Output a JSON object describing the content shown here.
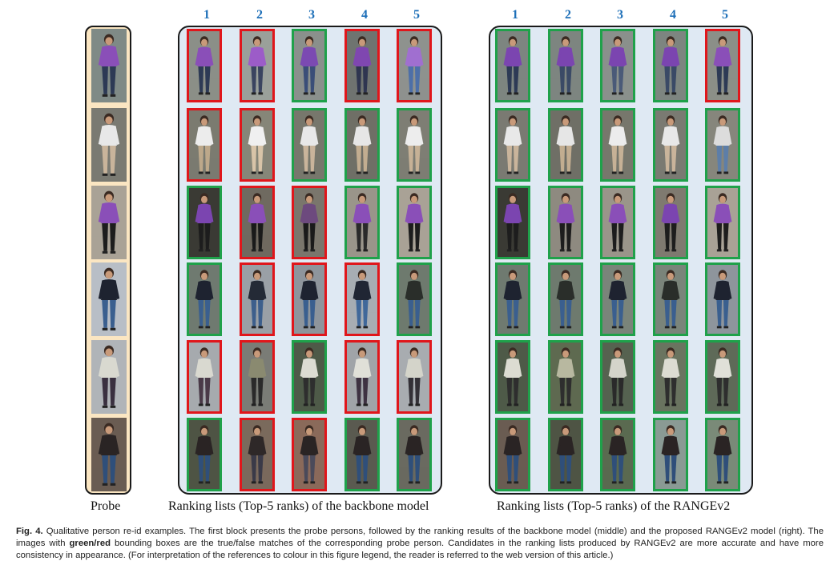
{
  "rank_numbers": [
    "1",
    "2",
    "3",
    "4",
    "5"
  ],
  "captions": {
    "probe": "Probe",
    "backbone": "Ranking lists (Top-5 ranks) of the backbone model",
    "rangev2": "Ranking lists (Top-5 ranks) of the RANGEv2"
  },
  "figure_caption": {
    "label": "Fig. 4.",
    "text_1": " Qualitative person re-id examples. The first block presents the probe persons, followed by the ranking results of the backbone model (middle) and the proposed RANGEv2 model (right). The images with ",
    "emphasis": "green/red",
    "text_2": " bounding boxes are the true/false matches of the corresponding probe person. Candidates in the ranking lists produced by RANGEv2 are more accurate and have more consistency in appearance. (For interpretation of the references to colour in this figure legend, the reader is referred to the web version of this article.)"
  },
  "colors": {
    "true_match": "#1fa14a",
    "false_match": "#e0161b",
    "rank_number": "#1d6fb8",
    "probe_bg": "#fbe6c2",
    "rank_bg": "#dfe9f3"
  },
  "rows": [
    {
      "probe": {
        "shirt": "#8a4fb8",
        "pants": "#2d3a55",
        "bg": "#7f8a86"
      },
      "backbone": [
        {
          "match": "red",
          "shirt": "#8a4fb8",
          "pants": "#2d3a55",
          "bg": "#8b8f88"
        },
        {
          "match": "red",
          "shirt": "#9c5cc8",
          "pants": "#3a4460",
          "bg": "#9aa09a"
        },
        {
          "match": "green",
          "shirt": "#7b4ab2",
          "pants": "#3a4e78",
          "bg": "#8a908c"
        },
        {
          "match": "red",
          "shirt": "#7f47b0",
          "pants": "#2f3550",
          "bg": "#6f7470"
        },
        {
          "match": "red",
          "shirt": "#a06fd0",
          "pants": "#4d6fa8",
          "bg": "#8e928e"
        }
      ],
      "rangev2": [
        {
          "match": "green",
          "shirt": "#7b45b0",
          "pants": "#2d3a55",
          "bg": "#7d8580"
        },
        {
          "match": "green",
          "shirt": "#7b45b0",
          "pants": "#3a4a66",
          "bg": "#7d8580"
        },
        {
          "match": "green",
          "shirt": "#7b45b0",
          "pants": "#4a5a78",
          "bg": "#8a908c"
        },
        {
          "match": "green",
          "shirt": "#7b45b0",
          "pants": "#3a4a66",
          "bg": "#7d8580"
        },
        {
          "match": "red",
          "shirt": "#8a4fb8",
          "pants": "#2d3a55",
          "bg": "#8b8f88"
        }
      ]
    },
    {
      "probe": {
        "shirt": "#e8e8e8",
        "pants": "#c9b49b",
        "bg": "#7a7a72"
      },
      "backbone": [
        {
          "match": "red",
          "shirt": "#ececec",
          "pants": "#bda88a",
          "bg": "#7b7b70"
        },
        {
          "match": "red",
          "shirt": "#f0f0f0",
          "pants": "#d8c4a8",
          "bg": "#868678"
        },
        {
          "match": "green",
          "shirt": "#e8e8e8",
          "pants": "#c9b49b",
          "bg": "#77776c"
        },
        {
          "match": "green",
          "shirt": "#e6e6e6",
          "pants": "#c2ad90",
          "bg": "#6f6f66"
        },
        {
          "match": "green",
          "shirt": "#ededed",
          "pants": "#c6b196",
          "bg": "#7e7e74"
        }
      ],
      "rangev2": [
        {
          "match": "green",
          "shirt": "#e8e8e8",
          "pants": "#c9b49b",
          "bg": "#7a7a72"
        },
        {
          "match": "green",
          "shirt": "#e6e6e6",
          "pants": "#c2ad90",
          "bg": "#6f6f66"
        },
        {
          "match": "green",
          "shirt": "#ececec",
          "pants": "#c6b196",
          "bg": "#77776c"
        },
        {
          "match": "green",
          "shirt": "#e8e8e8",
          "pants": "#c9b49b",
          "bg": "#7a7a72"
        },
        {
          "match": "green",
          "shirt": "#dcdcdc",
          "pants": "#5d7ea8",
          "bg": "#86867c"
        }
      ]
    },
    {
      "probe": {
        "shirt": "#8a4fb8",
        "pants": "#1d1d1d",
        "bg": "#a9a296"
      },
      "backbone": [
        {
          "match": "green",
          "shirt": "#7b45b0",
          "pants": "#1d1d1d",
          "bg": "#3a3a34"
        },
        {
          "match": "red",
          "shirt": "#8a4fb8",
          "pants": "#1a1a1a",
          "bg": "#6f6a60"
        },
        {
          "match": "red",
          "shirt": "#6d4a7e",
          "pants": "#1a1a1a",
          "bg": "#7a766c"
        },
        {
          "match": "green",
          "shirt": "#8a4fb8",
          "pants": "#2a2a2a",
          "bg": "#9a958a"
        },
        {
          "match": "green",
          "shirt": "#8a4fb8",
          "pants": "#1d1d1d",
          "bg": "#a9a296"
        }
      ],
      "rangev2": [
        {
          "match": "green",
          "shirt": "#7b45b0",
          "pants": "#1d1d1d",
          "bg": "#3a3a34"
        },
        {
          "match": "green",
          "shirt": "#8a4fb8",
          "pants": "#1d1d1d",
          "bg": "#8e8a80"
        },
        {
          "match": "green",
          "shirt": "#8a4fb8",
          "pants": "#1d1d1d",
          "bg": "#9a958a"
        },
        {
          "match": "green",
          "shirt": "#7b45b0",
          "pants": "#1d1d1d",
          "bg": "#7f7a70"
        },
        {
          "match": "green",
          "shirt": "#8a4fb8",
          "pants": "#1d1d1d",
          "bg": "#a9a296"
        }
      ]
    },
    {
      "probe": {
        "shirt": "#1e2330",
        "pants": "#3a5f8f",
        "bg": "#b8bec6"
      },
      "backbone": [
        {
          "match": "green",
          "shirt": "#1e2330",
          "pants": "#3a5f8f",
          "bg": "#6f7a70"
        },
        {
          "match": "red",
          "shirt": "#242a36",
          "pants": "#3d5f8c",
          "bg": "#9aa0a6"
        },
        {
          "match": "red",
          "shirt": "#1e2330",
          "pants": "#3a5f8f",
          "bg": "#8e959c"
        },
        {
          "match": "red",
          "shirt": "#202634",
          "pants": "#40689a",
          "bg": "#a7adb3"
        },
        {
          "match": "green",
          "shirt": "#2a2e2a",
          "pants": "#3a5f8f",
          "bg": "#6e7a6e"
        }
      ],
      "rangev2": [
        {
          "match": "green",
          "shirt": "#1e2330",
          "pants": "#3a5f8f",
          "bg": "#6f7a70"
        },
        {
          "match": "green",
          "shirt": "#2a2e2a",
          "pants": "#3a5f8f",
          "bg": "#6e7a6e"
        },
        {
          "match": "green",
          "shirt": "#1e2330",
          "pants": "#3a5f8f",
          "bg": "#7a847a"
        },
        {
          "match": "green",
          "shirt": "#2a2e2a",
          "pants": "#3a5f8f",
          "bg": "#7a847a"
        },
        {
          "match": "green",
          "shirt": "#1e2330",
          "pants": "#3a5f8f",
          "bg": "#8e959c"
        }
      ]
    },
    {
      "probe": {
        "shirt": "#d9d9d0",
        "pants": "#3a3040",
        "bg": "#b0b4b8"
      },
      "backbone": [
        {
          "match": "red",
          "shirt": "#d9d9d0",
          "pants": "#4a3a48",
          "bg": "#a6aaae"
        },
        {
          "match": "red",
          "shirt": "#8a8a70",
          "pants": "#2a2a2a",
          "bg": "#7a7c76"
        },
        {
          "match": "green",
          "shirt": "#dcdcd2",
          "pants": "#2e2e2e",
          "bg": "#4e5a48"
        },
        {
          "match": "red",
          "shirt": "#e0e0d8",
          "pants": "#3e3242",
          "bg": "#a0a4a8"
        },
        {
          "match": "red",
          "shirt": "#d4d4ca",
          "pants": "#333036",
          "bg": "#a8acb0"
        }
      ],
      "rangev2": [
        {
          "match": "green",
          "shirt": "#dcdcd2",
          "pants": "#2e2e2e",
          "bg": "#4e5a48"
        },
        {
          "match": "green",
          "shirt": "#b8b8a0",
          "pants": "#2e2e2e",
          "bg": "#5e6a50"
        },
        {
          "match": "green",
          "shirt": "#d4d4ca",
          "pants": "#2a2a2a",
          "bg": "#566250"
        },
        {
          "match": "green",
          "shirt": "#dcdcd2",
          "pants": "#2e2e2e",
          "bg": "#6a7460"
        },
        {
          "match": "green",
          "shirt": "#e0e0d8",
          "pants": "#2e2e2e",
          "bg": "#5e6a58"
        }
      ]
    },
    {
      "probe": {
        "shirt": "#2a2424",
        "pants": "#2f4f7a",
        "bg": "#6a5c52"
      },
      "backbone": [
        {
          "match": "green",
          "shirt": "#2a2424",
          "pants": "#2f4f7a",
          "bg": "#4e5444"
        },
        {
          "match": "red",
          "shirt": "#2e2828",
          "pants": "#3a3a48",
          "bg": "#7a6a5c"
        },
        {
          "match": "red",
          "shirt": "#2a2424",
          "pants": "#4a4a5a",
          "bg": "#8a6a5a"
        },
        {
          "match": "green",
          "shirt": "#2a2424",
          "pants": "#2f4f7a",
          "bg": "#5a5a50"
        },
        {
          "match": "green",
          "shirt": "#2a2424",
          "pants": "#2f4f7a",
          "bg": "#6a6a60"
        }
      ],
      "rangev2": [
        {
          "match": "green",
          "shirt": "#2a2424",
          "pants": "#2f4f7a",
          "bg": "#6a5c52"
        },
        {
          "match": "green",
          "shirt": "#2a2424",
          "pants": "#2f4f7a",
          "bg": "#4e5444"
        },
        {
          "match": "green",
          "shirt": "#2a2424",
          "pants": "#2f4f7a",
          "bg": "#5a6a50"
        },
        {
          "match": "green",
          "shirt": "#2a2424",
          "pants": "#2f4f7a",
          "bg": "#8a9a94"
        },
        {
          "match": "green",
          "shirt": "#2a2424",
          "pants": "#2f4f7a",
          "bg": "#7a8a78"
        }
      ]
    }
  ]
}
